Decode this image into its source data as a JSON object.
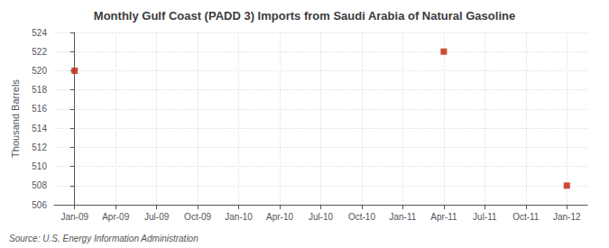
{
  "chart_data": {
    "type": "scatter",
    "title": "Monthly Gulf Coast (PADD 3) Imports from Saudi Arabia of Natural Gasoline",
    "ylabel": "Thousand Barrels",
    "annotations": [
      "Source: U.S. Energy Information Administration"
    ],
    "x": [
      0,
      27,
      36
    ],
    "values": [
      520,
      522,
      508
    ],
    "color": "#bb2200",
    "marker": "square",
    "xlim": [
      -1.5,
      37.5
    ],
    "xticks": [
      {
        "value": 0,
        "label": "Jan-09"
      },
      {
        "value": 3,
        "label": "Apr-09"
      },
      {
        "value": 6,
        "label": "Jul-09"
      },
      {
        "value": 9,
        "label": "Oct-09"
      },
      {
        "value": 12,
        "label": "Jan-10"
      },
      {
        "value": 15,
        "label": "Apr-10"
      },
      {
        "value": 18,
        "label": "Jul-10"
      },
      {
        "value": 21,
        "label": "Oct-10"
      },
      {
        "value": 24,
        "label": "Jan-11"
      },
      {
        "value": 27,
        "label": "Apr-11"
      },
      {
        "value": 30,
        "label": "Jul-11"
      },
      {
        "value": 33,
        "label": "Oct-11"
      },
      {
        "value": 36,
        "label": "Jan-12"
      }
    ],
    "ylim": [
      506,
      524
    ],
    "yticks": [
      506,
      508,
      510,
      512,
      514,
      516,
      518,
      520,
      522,
      524
    ],
    "grid": true
  }
}
